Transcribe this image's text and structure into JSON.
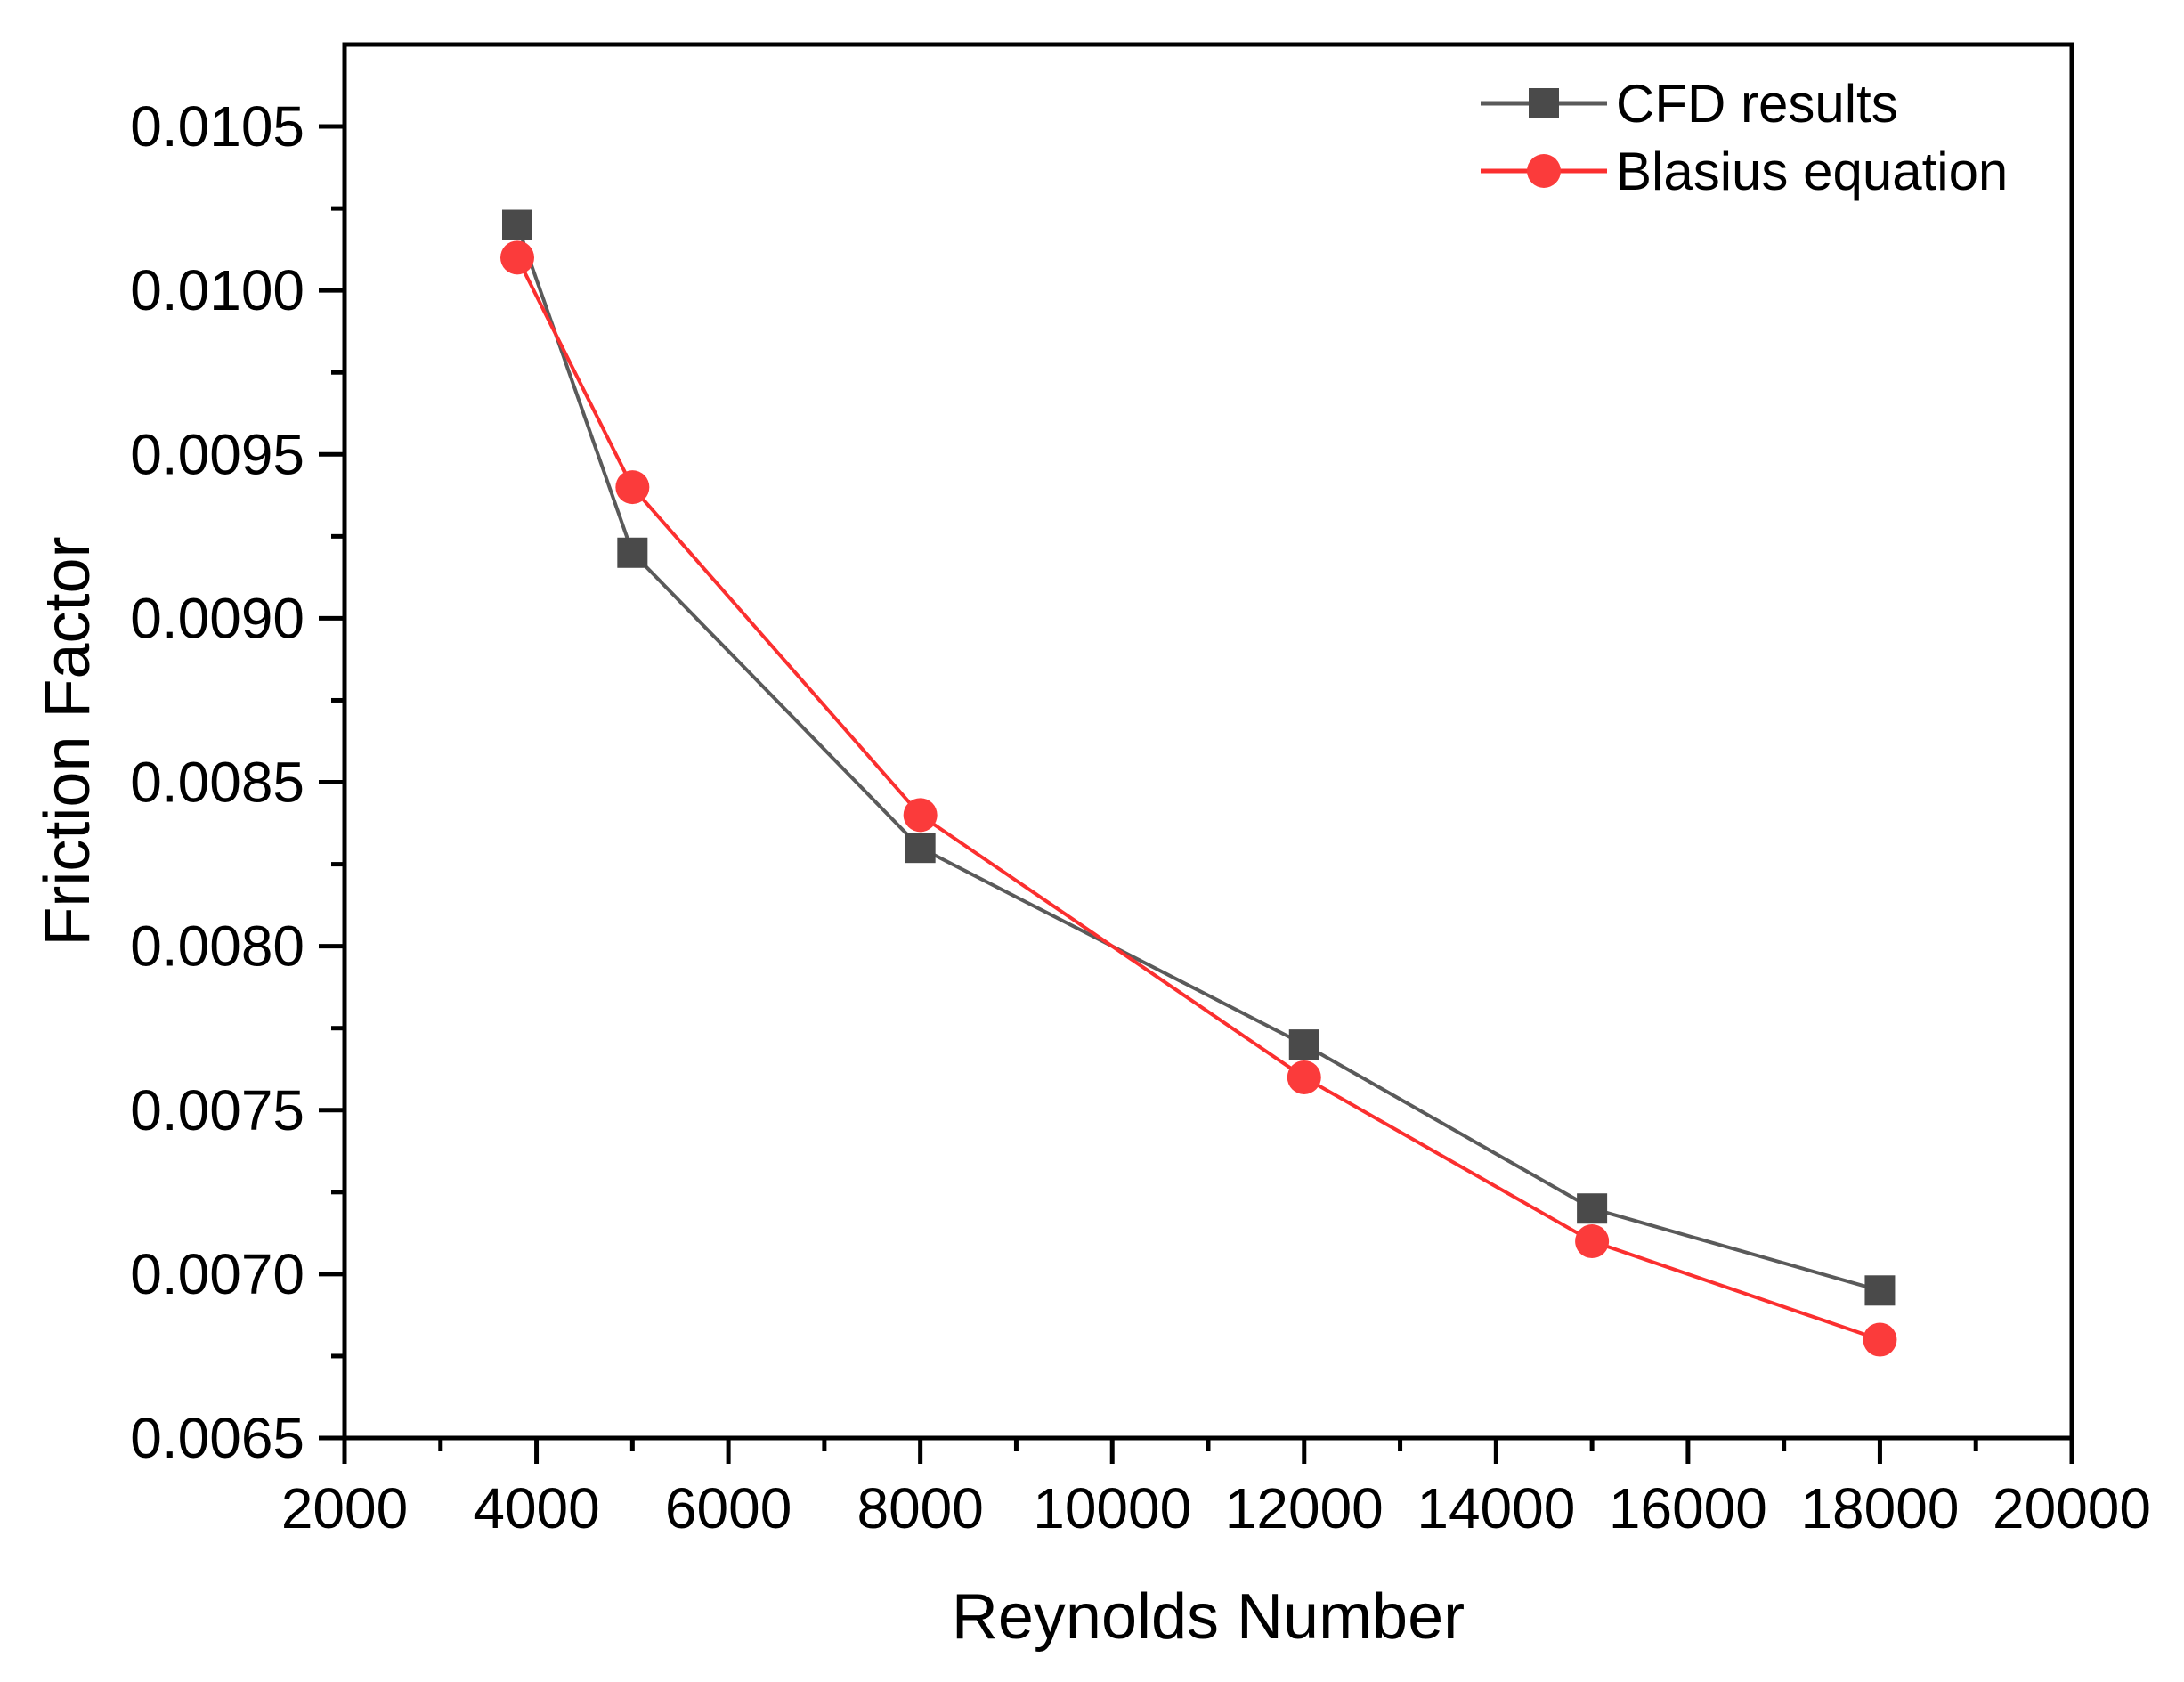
{
  "figure": {
    "background": "#ffffff",
    "frame_color": "#000000",
    "text_color": "#000000"
  },
  "chart_data": {
    "type": "line",
    "title": "",
    "xlabel": "Reynolds Number",
    "ylabel": "Friction Factor",
    "xlim": [
      2000,
      20000
    ],
    "ylim": [
      0.0065,
      0.01075
    ],
    "grid": false,
    "legend_position": "top-right-inside",
    "x_major_ticks": [
      2000,
      4000,
      6000,
      8000,
      10000,
      12000,
      14000,
      16000,
      18000,
      20000
    ],
    "x_tick_labels": [
      "2000",
      "4000",
      "6000",
      "8000",
      "10000",
      "12000",
      "14000",
      "16000",
      "18000",
      "20000"
    ],
    "x_minor_ticks": [
      3000,
      5000,
      7000,
      9000,
      11000,
      13000,
      15000,
      17000,
      19000
    ],
    "y_major_ticks": [
      0.0065,
      0.007,
      0.0075,
      0.008,
      0.0085,
      0.009,
      0.0095,
      0.01,
      0.0105
    ],
    "y_tick_labels": [
      "0.0065",
      "0.0070",
      "0.0075",
      "0.0080",
      "0.0085",
      "0.0090",
      "0.0095",
      "0.0100",
      "0.0105"
    ],
    "y_minor_ticks": [
      0.00675,
      0.00725,
      0.00775,
      0.00825,
      0.00875,
      0.00925,
      0.00975,
      0.01025
    ],
    "series": [
      {
        "name": "CFD results",
        "marker": "square",
        "marker_color": "#4a4a4a",
        "line_color": "#5a5a5a",
        "x": [
          3800,
          5000,
          8000,
          12000,
          15000,
          18000
        ],
        "y": [
          0.0102,
          0.0092,
          0.0083,
          0.0077,
          0.0072,
          0.00695
        ]
      },
      {
        "name": "Blasius equation",
        "marker": "circle",
        "marker_color": "#fb3b3b",
        "line_color": "#fb2f2f",
        "x": [
          3800,
          5000,
          8000,
          12000,
          15000,
          18000
        ],
        "y": [
          0.0101,
          0.0094,
          0.0084,
          0.0076,
          0.0071,
          0.0068
        ]
      }
    ]
  }
}
